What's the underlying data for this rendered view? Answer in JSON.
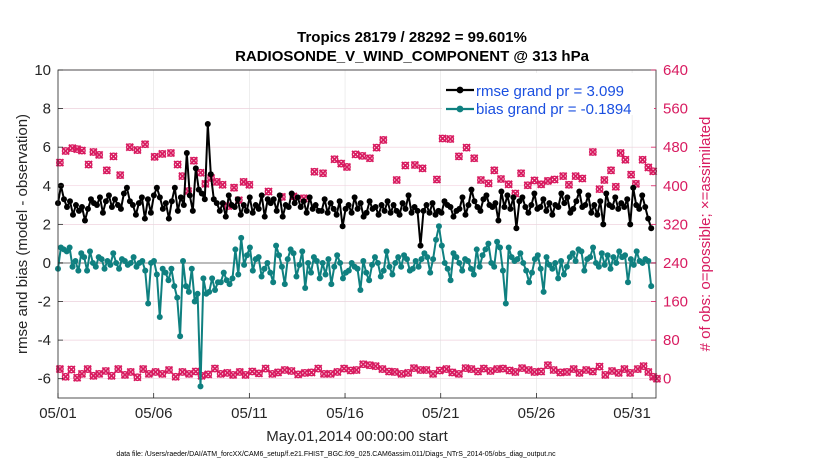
{
  "chart_data": {
    "type": "line",
    "title_line1": "Tropics 28179 / 28292 = 99.601%",
    "title_line2": "RADIOSONDE_V_WIND_COMPONENT @ 313 hPa",
    "xlabel": "May.01,2014 00:00:00 start",
    "ylabel_left": "rmse and bias (model - observation)",
    "ylabel_right": "# of obs: o=possible; ×=assimilated",
    "x_tick_labels": [
      "05/01",
      "05/06",
      "05/11",
      "05/16",
      "05/21",
      "05/26",
      "05/31"
    ],
    "x_tick_positions": [
      0,
      5,
      10,
      15,
      20,
      25,
      30
    ],
    "xlim": [
      0,
      31.25
    ],
    "ylim_left": [
      -7,
      10
    ],
    "yticks_left": [
      "-6",
      "-4",
      "-2",
      "0",
      "2",
      "4",
      "6",
      "8",
      "10"
    ],
    "ylim_right": [
      -40,
      640
    ],
    "yticks_right": [
      "0",
      "80",
      "160",
      "240",
      "320",
      "400",
      "480",
      "560",
      "640"
    ],
    "legend": [
      {
        "label": "rmse grand pr = 3.099",
        "color": "#000000"
      },
      {
        "label": "bias grand pr = -0.1894",
        "color": "#0f8080"
      }
    ],
    "colors": {
      "rmse": "#000000",
      "bias": "#0f8080",
      "obs": "#d81b60",
      "legend_text": "#1a4fe0",
      "zero_line": "#bbbbbb"
    },
    "rmse": [
      3.1,
      4.0,
      3.3,
      2.9,
      3.2,
      2.5,
      3.0,
      2.7,
      2.9,
      2.2,
      2.8,
      3.3,
      3.1,
      3.0,
      3.4,
      2.6,
      3.2,
      3.5,
      2.9,
      3.3,
      3.0,
      2.8,
      3.6,
      3.9,
      3.2,
      3.0,
      2.5,
      3.1,
      3.4,
      2.3,
      3.3,
      2.6,
      3.5,
      3.9,
      3.4,
      2.8,
      3.1,
      2.3,
      3.2,
      3.9,
      2.7,
      3.4,
      3.0,
      5.7,
      3.5,
      2.7,
      4.9,
      3.8,
      3.6,
      3.3,
      7.2,
      4.6,
      3.3,
      3.1,
      2.7,
      3.1,
      2.4,
      3.5,
      3.0,
      2.9,
      3.3,
      2.5,
      3.0,
      2.7,
      3.4,
      2.6,
      3.0,
      2.8,
      3.5,
      2.4,
      3.3,
      3.1,
      3.3,
      2.7,
      3.5,
      2.4,
      3.0,
      2.9,
      3.6,
      3.1,
      3.4,
      2.9,
      3.2,
      2.6,
      3.4,
      2.8,
      3.0,
      2.7,
      2.7,
      3.3,
      2.6,
      3.1,
      2.8,
      2.5,
      3.2,
      1.9,
      2.8,
      3.0,
      2.6,
      3.4,
      2.8,
      3.1,
      2.4,
      2.6,
      3.2,
      2.8,
      2.9,
      2.5,
      3.0,
      2.7,
      3.2,
      2.6,
      3.0,
      2.7,
      2.5,
      3.1,
      2.8,
      3.5,
      2.6,
      2.9,
      2.7,
      0.9,
      2.7,
      3.0,
      2.6,
      3.1,
      2.5,
      2.7,
      2.6,
      3.2,
      3.0,
      2.9,
      2.4,
      2.7,
      2.8,
      3.4,
      2.5,
      3.0,
      3.8,
      3.2,
      2.9,
      2.7,
      3.3,
      3.5,
      3.0,
      2.9,
      3.1,
      2.2,
      3.7,
      2.9,
      3.5,
      2.8,
      3.4,
      1.8,
      3.2,
      3.4,
      2.9,
      2.6,
      3.0,
      3.6,
      2.8,
      2.9,
      3.3,
      2.7,
      3.1,
      2.5,
      3.0,
      2.9,
      3.6,
      3.1,
      3.4,
      2.6,
      2.8,
      3.2,
      3.7,
      2.9,
      3.0,
      3.5,
      2.6,
      3.0,
      2.5,
      3.2,
      2.0,
      3.6,
      3.0,
      2.9,
      3.4,
      2.8,
      3.1,
      2.9,
      3.3,
      2.0,
      3.9,
      3.0,
      2.8,
      3.5,
      2.9,
      2.3,
      1.8
    ],
    "bias": [
      -0.3,
      0.8,
      0.7,
      0.6,
      0.8,
      -0.2,
      0.1,
      -0.4,
      0.5,
      0.3,
      -0.4,
      0.6,
      0.0,
      -0.2,
      0.3,
      0.2,
      -0.3,
      0.1,
      -0.1,
      0.5,
      0.0,
      -0.3,
      0.2,
      0.1,
      -0.1,
      0.0,
      0.3,
      -0.2,
      0.0,
      0.1,
      -0.4,
      -2.1,
      0.0,
      0.1,
      -0.6,
      -2.8,
      -0.3,
      -0.5,
      -0.9,
      -0.3,
      -1.2,
      -1.8,
      -3.8,
      0.1,
      -1.2,
      -1.5,
      -0.3,
      -2.0,
      -1.6,
      -6.4,
      -0.8,
      -1.6,
      -1.5,
      -0.8,
      -1.4,
      -1.0,
      -1.0,
      -0.5,
      -0.9,
      -1.1,
      -0.8,
      0.7,
      -0.6,
      1.3,
      -0.1,
      0.4,
      0.8,
      -0.4,
      0.2,
      0.3,
      -0.7,
      -0.3,
      0.0,
      -0.5,
      -1.0,
      0.9,
      0.4,
      -0.2,
      -1.1,
      0.2,
      0.7,
      0.5,
      -0.7,
      -0.1,
      0.6,
      -1.3,
      0.0,
      -0.5,
      0.3,
      0.1,
      -0.8,
      0.0,
      -0.6,
      0.2,
      -1.1,
      -0.2,
      0.4,
      0.0,
      -0.8,
      -0.5,
      -0.4,
      0.0,
      -0.2,
      -0.3,
      -1.4,
      0.1,
      -0.5,
      -0.9,
      -0.1,
      0.3,
      0.0,
      -0.7,
      -0.4,
      0.6,
      -0.2,
      -0.6,
      0.0,
      0.3,
      -0.2,
      0.4,
      0.2,
      -0.4,
      -0.3,
      0.1,
      -0.2,
      0.2,
      0.5,
      0.3,
      -0.5,
      0.2,
      1.2,
      1.9,
      0.9,
      0.0,
      -0.3,
      -0.9,
      0.5,
      0.3,
      0.0,
      -0.4,
      0.2,
      0.1,
      -0.3,
      -0.6,
      0.7,
      -0.2,
      0.4,
      0.7,
      1.0,
      0.0,
      -0.2,
      1.1,
      0.8,
      -0.4,
      -2.1,
      0.8,
      0.3,
      0.1,
      0.2,
      0.5,
      0.0,
      -0.4,
      -1.0,
      -0.5,
      0.2,
      0.4,
      -0.3,
      -1.5,
      0.3,
      -0.1,
      -0.3,
      0.0,
      -0.8,
      0.1,
      -0.6,
      -0.2,
      0.3,
      0.5,
      0.1,
      0.7,
      0.6,
      -0.4,
      0.2,
      0.3,
      0.8,
      0.0,
      -0.2,
      0.5,
      -0.1,
      0.4,
      -0.3,
      0.3,
      0.0,
      0.6,
      0.3,
      0.4,
      -1.0,
      0.2,
      -0.1,
      0.6,
      0.1,
      0.0,
      0.2,
      0.1,
      -1.2
    ],
    "obs_top": [
      [
        0.1,
        448
      ],
      [
        0.4,
        472
      ],
      [
        0.75,
        478
      ],
      [
        1.0,
        476
      ],
      [
        1.25,
        473
      ],
      [
        1.6,
        444
      ],
      [
        1.85,
        470
      ],
      [
        2.15,
        464
      ],
      [
        2.55,
        432
      ],
      [
        2.9,
        461
      ],
      [
        3.25,
        422
      ],
      [
        3.75,
        480
      ],
      [
        4.15,
        474
      ],
      [
        4.55,
        486
      ],
      [
        5.05,
        460
      ],
      [
        5.45,
        466
      ],
      [
        5.9,
        468
      ],
      [
        6.25,
        444
      ],
      [
        6.5,
        420
      ],
      [
        6.8,
        389
      ],
      [
        7.1,
        452
      ],
      [
        7.45,
        427
      ],
      [
        7.7,
        404
      ],
      [
        8.0,
        416
      ],
      [
        8.3,
        408
      ],
      [
        8.6,
        402
      ],
      [
        8.9,
        358
      ],
      [
        9.2,
        396
      ],
      [
        9.45,
        370
      ],
      [
        9.7,
        408
      ],
      [
        10.0,
        402
      ],
      [
        11.0,
        388
      ],
      [
        11.7,
        377
      ],
      [
        12.3,
        378
      ],
      [
        12.85,
        374
      ],
      [
        13.4,
        429
      ],
      [
        13.85,
        426
      ],
      [
        14.45,
        455
      ],
      [
        14.8,
        446
      ],
      [
        15.1,
        439
      ],
      [
        15.55,
        465
      ],
      [
        15.9,
        462
      ],
      [
        16.3,
        457
      ],
      [
        16.65,
        479
      ],
      [
        17.0,
        495
      ],
      [
        17.7,
        412
      ],
      [
        18.15,
        442
      ],
      [
        18.65,
        443
      ],
      [
        19.05,
        436
      ],
      [
        19.8,
        413
      ],
      [
        20.1,
        498
      ],
      [
        20.5,
        497
      ],
      [
        20.95,
        461
      ],
      [
        21.35,
        479
      ],
      [
        21.75,
        457
      ],
      [
        22.1,
        412
      ],
      [
        22.5,
        405
      ],
      [
        22.8,
        432
      ],
      [
        23.15,
        414
      ],
      [
        23.55,
        403
      ],
      [
        23.9,
        384
      ],
      [
        24.2,
        426
      ],
      [
        24.55,
        401
      ],
      [
        24.9,
        411
      ],
      [
        25.25,
        403
      ],
      [
        25.6,
        410
      ],
      [
        25.95,
        413
      ],
      [
        26.4,
        420
      ],
      [
        26.7,
        402
      ],
      [
        27.05,
        420
      ],
      [
        27.4,
        415
      ],
      [
        27.95,
        470
      ],
      [
        28.3,
        393
      ],
      [
        28.55,
        412
      ],
      [
        28.9,
        432
      ],
      [
        29.15,
        398
      ],
      [
        29.4,
        468
      ],
      [
        29.65,
        454
      ],
      [
        29.95,
        423
      ],
      [
        30.2,
        404
      ],
      [
        30.55,
        454
      ],
      [
        30.85,
        438
      ],
      [
        31.1,
        430
      ]
    ],
    "obs_bottom": [
      [
        0.1,
        20
      ],
      [
        0.4,
        4
      ],
      [
        0.7,
        19
      ],
      [
        1.0,
        2
      ],
      [
        1.25,
        10
      ],
      [
        1.55,
        20
      ],
      [
        1.85,
        6
      ],
      [
        2.15,
        10
      ],
      [
        2.5,
        16
      ],
      [
        2.8,
        6
      ],
      [
        3.15,
        20
      ],
      [
        3.5,
        8
      ],
      [
        3.8,
        14
      ],
      [
        4.15,
        3
      ],
      [
        4.45,
        20
      ],
      [
        4.75,
        10
      ],
      [
        5.1,
        14
      ],
      [
        5.45,
        10
      ],
      [
        5.8,
        18
      ],
      [
        6.15,
        4
      ],
      [
        6.5,
        14
      ],
      [
        6.85,
        10
      ],
      [
        7.2,
        15
      ],
      [
        7.5,
        6
      ],
      [
        7.85,
        9
      ],
      [
        8.2,
        21
      ],
      [
        8.5,
        10
      ],
      [
        8.85,
        12
      ],
      [
        9.15,
        8
      ],
      [
        9.5,
        14
      ],
      [
        9.8,
        8
      ],
      [
        10.15,
        15
      ],
      [
        10.5,
        11
      ],
      [
        10.85,
        21
      ],
      [
        11.2,
        10
      ],
      [
        11.5,
        13
      ],
      [
        11.85,
        18
      ],
      [
        12.2,
        16
      ],
      [
        12.55,
        9
      ],
      [
        12.9,
        12
      ],
      [
        13.25,
        13
      ],
      [
        13.6,
        21
      ],
      [
        13.9,
        10
      ],
      [
        14.25,
        10
      ],
      [
        14.6,
        14
      ],
      [
        14.95,
        21
      ],
      [
        15.3,
        17
      ],
      [
        15.6,
        18
      ],
      [
        15.95,
        30
      ],
      [
        16.3,
        28
      ],
      [
        16.6,
        26
      ],
      [
        16.95,
        20
      ],
      [
        17.3,
        15
      ],
      [
        17.6,
        14
      ],
      [
        17.95,
        10
      ],
      [
        18.3,
        12
      ],
      [
        18.6,
        22
      ],
      [
        18.95,
        18
      ],
      [
        19.25,
        18
      ],
      [
        19.6,
        10
      ],
      [
        19.95,
        17
      ],
      [
        20.3,
        20
      ],
      [
        20.6,
        13
      ],
      [
        20.95,
        10
      ],
      [
        21.3,
        22
      ],
      [
        21.6,
        20
      ],
      [
        21.95,
        15
      ],
      [
        22.25,
        21
      ],
      [
        22.6,
        16
      ],
      [
        22.95,
        20
      ],
      [
        23.25,
        21
      ],
      [
        23.6,
        17
      ],
      [
        23.9,
        14
      ],
      [
        24.25,
        22
      ],
      [
        24.6,
        18
      ],
      [
        24.9,
        14
      ],
      [
        25.25,
        15
      ],
      [
        25.6,
        28
      ],
      [
        25.9,
        18
      ],
      [
        26.25,
        13
      ],
      [
        26.6,
        14
      ],
      [
        26.95,
        20
      ],
      [
        27.25,
        12
      ],
      [
        27.6,
        18
      ],
      [
        27.95,
        15
      ],
      [
        28.3,
        25
      ],
      [
        28.6,
        8
      ],
      [
        28.95,
        16
      ],
      [
        29.3,
        12
      ],
      [
        29.6,
        20
      ],
      [
        29.9,
        12
      ],
      [
        30.3,
        20
      ],
      [
        30.6,
        26
      ],
      [
        30.85,
        14
      ],
      [
        31.1,
        4
      ],
      [
        31.3,
        0
      ]
    ],
    "footer": "data file: /Users/raeder/DAI/ATM_forcXX/CAM6_setup/f.e21.FHIST_BGC.f09_025.CAM6assim.011/Diags_NTrS_2014-05/obs_diag_output.nc"
  }
}
